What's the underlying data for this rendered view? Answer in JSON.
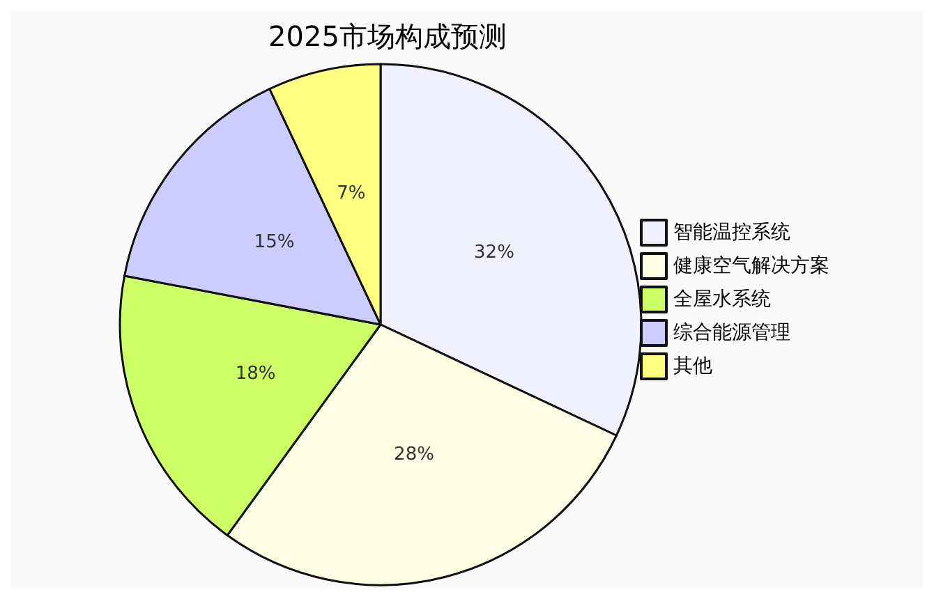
{
  "chart_data": {
    "type": "pie",
    "title": "2025市场构成预测",
    "categories": [
      "智能温控系统",
      "健康空气解决方案",
      "全屋水系统",
      "综合能源管理",
      "其他"
    ],
    "values": [
      32,
      28,
      18,
      15,
      7
    ],
    "colors": [
      "#f0f0ff",
      "#ffffe6",
      "#ccff66",
      "#ccccff",
      "#ffff80"
    ],
    "value_labels": [
      "32%",
      "28%",
      "18%",
      "15%",
      "7%"
    ],
    "legend": "right"
  }
}
